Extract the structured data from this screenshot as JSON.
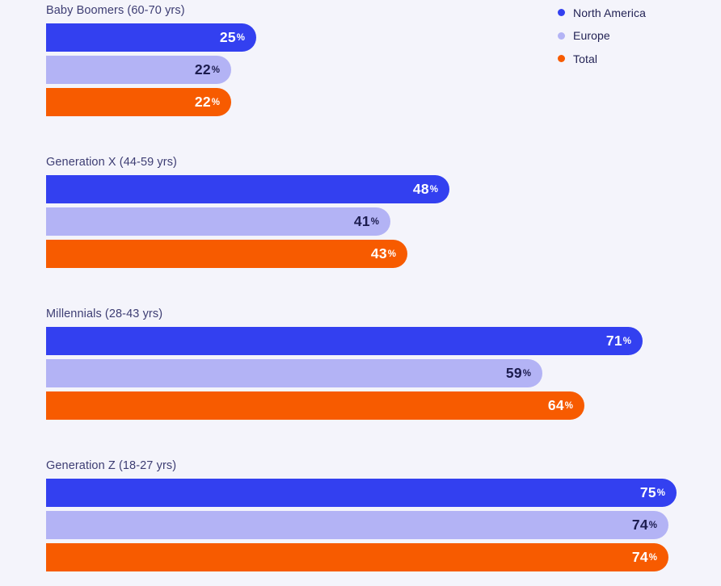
{
  "chart_data": {
    "type": "bar",
    "orientation": "horizontal",
    "unit": "%",
    "xlim": [
      0,
      100
    ],
    "grid": false,
    "legend_position": "top-right",
    "series_names": [
      "North America",
      "Europe",
      "Total"
    ],
    "categories": [
      "Baby Boomers (60-70 yrs)",
      "Generation X (44-59 yrs)",
      "Millennials (28-43 yrs)",
      "Generation Z (18-27 yrs)"
    ],
    "groups": [
      {
        "label": "Baby Boomers (60-70 yrs)",
        "values": [
          25,
          22,
          22
        ]
      },
      {
        "label": "Generation X (44-59 yrs)",
        "values": [
          48,
          41,
          43
        ]
      },
      {
        "label": "Millennials (28-43 yrs)",
        "values": [
          71,
          59,
          64
        ]
      },
      {
        "label": "Generation Z (18-27 yrs)",
        "values": [
          75,
          74,
          74
        ]
      }
    ],
    "value_suffix": "%"
  },
  "legend": {
    "items": [
      {
        "label": "North America",
        "color": "#3340F0"
      },
      {
        "label": "Europe",
        "color": "#B3B3F5"
      },
      {
        "label": "Total",
        "color": "#F75B00"
      }
    ]
  },
  "colors": {
    "background": "#F4F4FB",
    "series": [
      "#3340F0",
      "#B3B3F5",
      "#F75B00"
    ],
    "value_text_on_series": [
      "#FFFFFF",
      "#1C1C4E",
      "#FFFFFF"
    ],
    "group_label_text": "#3D3D73",
    "legend_text": "#232355"
  }
}
